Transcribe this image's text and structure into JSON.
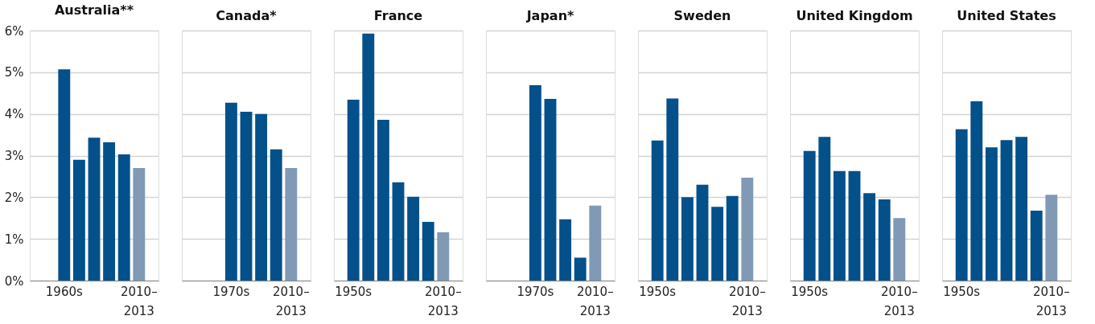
{
  "chart_data": [
    {
      "type": "bar",
      "title": "Australia**",
      "categories": [
        null,
        "1960s",
        null,
        null,
        null,
        null,
        "2010–2013"
      ],
      "values": [
        null,
        5.07,
        2.9,
        3.43,
        3.32,
        3.03,
        2.7
      ],
      "colors": [
        "#04508a",
        "#04508a",
        "#04508a",
        "#04508a",
        "#04508a",
        "#04508a",
        "#8099b4"
      ],
      "ylim": [
        0,
        6
      ],
      "yticks": [
        {
          "value": 0,
          "label": "0%"
        },
        {
          "value": 1,
          "label": "1%"
        },
        {
          "value": 2,
          "label": "2%"
        },
        {
          "value": 3,
          "label": "3%"
        },
        {
          "value": 4,
          "label": "4%"
        },
        {
          "value": 5,
          "label": "5%"
        },
        {
          "value": 6,
          "label": "6%"
        }
      ],
      "grid": "y"
    },
    {
      "type": "bar",
      "title": "Canada*",
      "categories": [
        null,
        null,
        "1970s",
        null,
        null,
        null,
        "2010–2013"
      ],
      "values": [
        null,
        null,
        4.27,
        4.05,
        4.0,
        3.15,
        2.7
      ],
      "colors": [
        "#04508a",
        "#04508a",
        "#04508a",
        "#04508a",
        "#04508a",
        "#04508a",
        "#8099b4"
      ],
      "ylim": [
        0,
        6
      ],
      "yticks": [
        0,
        1,
        2,
        3,
        4,
        5,
        6
      ],
      "grid": "y",
      "tick_labels": "x"
    },
    {
      "type": "bar",
      "title": "France",
      "categories": [
        "1950s",
        null,
        null,
        null,
        null,
        null,
        "2010–2013"
      ],
      "values": [
        4.34,
        5.93,
        3.86,
        2.36,
        2.01,
        1.41,
        1.16
      ],
      "colors": [
        "#04508a",
        "#04508a",
        "#04508a",
        "#04508a",
        "#04508a",
        "#04508a",
        "#8099b4"
      ],
      "ylim": [
        0,
        6
      ],
      "yticks": [
        0,
        1,
        2,
        3,
        4,
        5,
        6
      ],
      "grid": "y",
      "tick_labels": "x"
    },
    {
      "type": "bar",
      "title": "Japan*",
      "categories": [
        null,
        null,
        "1970s",
        null,
        null,
        null,
        "2010–2013"
      ],
      "values": [
        null,
        null,
        4.69,
        4.36,
        1.47,
        0.55,
        1.8
      ],
      "colors": [
        "#04508a",
        "#04508a",
        "#04508a",
        "#04508a",
        "#04508a",
        "#04508a",
        "#8099b4"
      ],
      "ylim": [
        0,
        6
      ],
      "yticks": [
        0,
        1,
        2,
        3,
        4,
        5,
        6
      ],
      "grid": "y",
      "tick_labels": "x"
    },
    {
      "type": "bar",
      "title": "Sweden",
      "categories": [
        "1950s",
        null,
        null,
        null,
        null,
        null,
        "2010–2013"
      ],
      "values": [
        3.36,
        4.37,
        2.0,
        2.3,
        1.77,
        2.03,
        2.47
      ],
      "colors": [
        "#04508a",
        "#04508a",
        "#04508a",
        "#04508a",
        "#04508a",
        "#04508a",
        "#8099b4"
      ],
      "ylim": [
        0,
        6
      ],
      "yticks": [
        0,
        1,
        2,
        3,
        4,
        5,
        6
      ],
      "grid": "y",
      "tick_labels": "x"
    },
    {
      "type": "bar",
      "title": "United Kingdom",
      "categories": [
        "1950s",
        null,
        null,
        null,
        null,
        null,
        "2010–2013"
      ],
      "values": [
        3.11,
        3.45,
        2.63,
        2.63,
        2.1,
        1.95,
        1.5
      ],
      "colors": [
        "#04508a",
        "#04508a",
        "#04508a",
        "#04508a",
        "#04508a",
        "#04508a",
        "#8099b4"
      ],
      "ylim": [
        0,
        6
      ],
      "yticks": [
        0,
        1,
        2,
        3,
        4,
        5,
        6
      ],
      "grid": "y",
      "tick_labels": "x"
    },
    {
      "type": "bar",
      "title": "United States",
      "categories": [
        "1950s",
        null,
        null,
        null,
        null,
        null,
        "2010–2013"
      ],
      "values": [
        3.63,
        4.3,
        3.2,
        3.37,
        3.45,
        1.68,
        2.06
      ],
      "colors": [
        "#04508a",
        "#04508a",
        "#04508a",
        "#04508a",
        "#04508a",
        "#04508a",
        "#8099b4"
      ],
      "ylim": [
        0,
        6
      ],
      "yticks": [
        0,
        1,
        2,
        3,
        4,
        5,
        6
      ],
      "grid": "y",
      "tick_labels": "x"
    }
  ]
}
